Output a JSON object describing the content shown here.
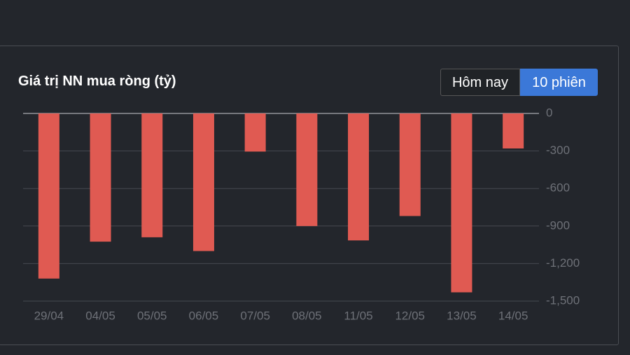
{
  "chart_data": {
    "type": "bar",
    "title": "Giá trị NN mua ròng (tỷ)",
    "categories": [
      "29/04",
      "04/05",
      "05/05",
      "06/05",
      "07/05",
      "08/05",
      "11/05",
      "12/05",
      "13/05",
      "14/05"
    ],
    "values": [
      -1320,
      -1025,
      -990,
      -1100,
      -305,
      -900,
      -1015,
      -820,
      -1430,
      -280
    ],
    "color": "#e05a52",
    "ylim": [
      -1500,
      0
    ],
    "yticks": [
      0,
      -300,
      -600,
      -900,
      {
        "value": -1200,
        "label": "-1,200"
      },
      {
        "value": -1500,
        "label": "-1,500"
      }
    ],
    "grid": true
  },
  "tabs": [
    "Hôm nay",
    "10 phiên"
  ]
}
